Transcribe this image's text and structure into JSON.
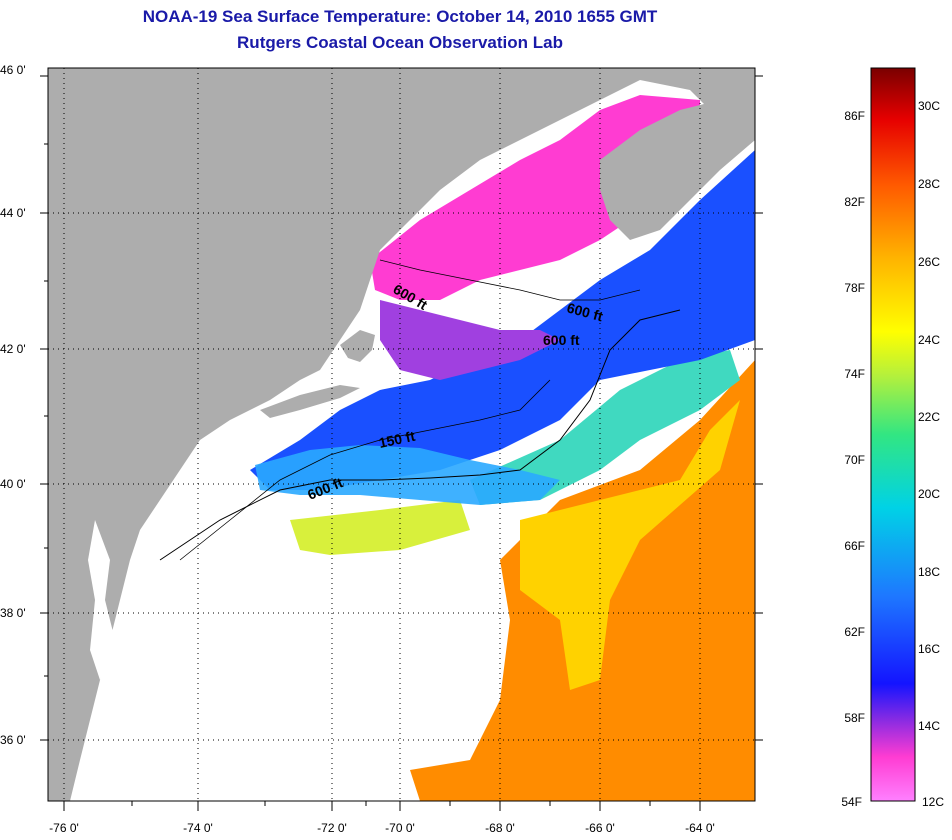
{
  "header": {
    "title": "NOAA-19 Sea Surface Temperature:  October 14, 2010 1655 GMT",
    "subtitle": "Rutgers Coastal Ocean Observation Lab"
  },
  "map": {
    "lat_labels": [
      "46 0'",
      "44 0'",
      "42 0'",
      "40 0'",
      "38 0'",
      "36 0'"
    ],
    "lon_labels": [
      "-76 0'",
      "-74 0'",
      "-72 0'",
      "-70 0'",
      "-68 0'",
      "-66 0'",
      "-64 0'"
    ],
    "contour_labels": [
      "600 ft",
      "600 ft",
      "600 ft",
      "150 ft",
      "600 ft"
    ],
    "colors": {
      "land": "#adadad",
      "cloud_mask": "#ffffff",
      "gulf_of_maine": "#ff3cd2",
      "shelf_water": "#1a50ff",
      "gulf_stream": "#ff8c00",
      "warm_core": "#ffd400",
      "slope_water": "#40e0c0"
    }
  },
  "colorbar": {
    "fahrenheit_labels": [
      "86F",
      "82F",
      "78F",
      "74F",
      "70F",
      "66F",
      "62F",
      "58F",
      "54F"
    ],
    "celsius_labels": [
      "30C",
      "28C",
      "26C",
      "24C",
      "22C",
      "20C",
      "18C",
      "16C",
      "14C",
      "12C"
    ]
  }
}
